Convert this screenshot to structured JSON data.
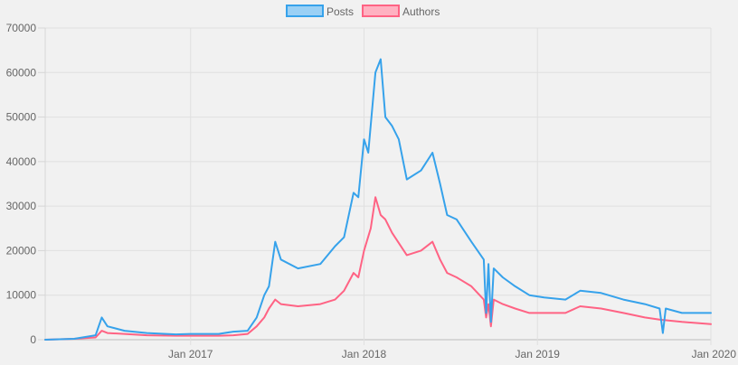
{
  "chart_data": {
    "type": "line",
    "title": "",
    "xlabel": "",
    "ylabel": "",
    "x_axis": {
      "min": "2016-03-01",
      "max": "2020-01-01",
      "ticks": [
        {
          "date": "2017-01-01",
          "label": "Jan 2017"
        },
        {
          "date": "2018-01-01",
          "label": "Jan 2018"
        },
        {
          "date": "2019-01-01",
          "label": "Jan 2019"
        },
        {
          "date": "2020-01-01",
          "label": "Jan 2020"
        }
      ]
    },
    "y_axis": {
      "min": 0,
      "max": 70000,
      "ticks": [
        0,
        10000,
        20000,
        30000,
        40000,
        50000,
        60000,
        70000
      ]
    },
    "grid": true,
    "legend_position": "top",
    "series": [
      {
        "name": "Posts",
        "color": "#36a2eb",
        "fill": "#9ad0f5",
        "points": [
          [
            "2016-03-01",
            0
          ],
          [
            "2016-05-01",
            200
          ],
          [
            "2016-06-15",
            1000
          ],
          [
            "2016-06-28",
            5000
          ],
          [
            "2016-07-10",
            3000
          ],
          [
            "2016-08-15",
            2000
          ],
          [
            "2016-10-01",
            1500
          ],
          [
            "2016-12-01",
            1200
          ],
          [
            "2017-01-01",
            1300
          ],
          [
            "2017-03-01",
            1300
          ],
          [
            "2017-04-01",
            1800
          ],
          [
            "2017-05-01",
            2000
          ],
          [
            "2017-05-20",
            5000
          ],
          [
            "2017-06-05",
            10000
          ],
          [
            "2017-06-15",
            12000
          ],
          [
            "2017-06-28",
            22000
          ],
          [
            "2017-07-10",
            18000
          ],
          [
            "2017-08-15",
            16000
          ],
          [
            "2017-10-01",
            17000
          ],
          [
            "2017-11-01",
            21000
          ],
          [
            "2017-11-20",
            23000
          ],
          [
            "2017-12-10",
            33000
          ],
          [
            "2017-12-20",
            32000
          ],
          [
            "2018-01-01",
            45000
          ],
          [
            "2018-01-10",
            42000
          ],
          [
            "2018-01-25",
            60000
          ],
          [
            "2018-02-05",
            63000
          ],
          [
            "2018-02-15",
            50000
          ],
          [
            "2018-03-01",
            48000
          ],
          [
            "2018-03-15",
            45000
          ],
          [
            "2018-04-01",
            36000
          ],
          [
            "2018-05-01",
            38000
          ],
          [
            "2018-05-25",
            42000
          ],
          [
            "2018-06-10",
            35000
          ],
          [
            "2018-06-25",
            28000
          ],
          [
            "2018-07-15",
            27000
          ],
          [
            "2018-08-15",
            22000
          ],
          [
            "2018-09-10",
            18000
          ],
          [
            "2018-09-15",
            6000
          ],
          [
            "2018-09-20",
            17000
          ],
          [
            "2018-09-25",
            4000
          ],
          [
            "2018-10-01",
            16000
          ],
          [
            "2018-10-20",
            14000
          ],
          [
            "2018-11-15",
            12000
          ],
          [
            "2018-12-15",
            10000
          ],
          [
            "2019-01-15",
            9500
          ],
          [
            "2019-03-01",
            9000
          ],
          [
            "2019-04-01",
            11000
          ],
          [
            "2019-05-15",
            10500
          ],
          [
            "2019-07-01",
            9000
          ],
          [
            "2019-08-15",
            8000
          ],
          [
            "2019-09-15",
            7000
          ],
          [
            "2019-09-22",
            1500
          ],
          [
            "2019-09-28",
            7000
          ],
          [
            "2019-11-01",
            6000
          ],
          [
            "2020-01-01",
            6000
          ]
        ]
      },
      {
        "name": "Authors",
        "color": "#ff6384",
        "fill": "#ffb1c1",
        "points": [
          [
            "2016-03-01",
            0
          ],
          [
            "2016-05-01",
            200
          ],
          [
            "2016-06-15",
            500
          ],
          [
            "2016-06-28",
            2000
          ],
          [
            "2016-07-10",
            1500
          ],
          [
            "2016-08-15",
            1300
          ],
          [
            "2016-10-01",
            1000
          ],
          [
            "2016-12-01",
            900
          ],
          [
            "2017-01-01",
            900
          ],
          [
            "2017-03-01",
            900
          ],
          [
            "2017-04-01",
            1000
          ],
          [
            "2017-05-01",
            1300
          ],
          [
            "2017-05-20",
            3000
          ],
          [
            "2017-06-05",
            5000
          ],
          [
            "2017-06-15",
            7000
          ],
          [
            "2017-06-28",
            9000
          ],
          [
            "2017-07-10",
            8000
          ],
          [
            "2017-08-15",
            7500
          ],
          [
            "2017-10-01",
            8000
          ],
          [
            "2017-11-01",
            9000
          ],
          [
            "2017-11-20",
            11000
          ],
          [
            "2017-12-10",
            15000
          ],
          [
            "2017-12-20",
            14000
          ],
          [
            "2018-01-01",
            20000
          ],
          [
            "2018-01-15",
            25000
          ],
          [
            "2018-01-25",
            32000
          ],
          [
            "2018-02-05",
            28000
          ],
          [
            "2018-02-15",
            27000
          ],
          [
            "2018-03-01",
            24000
          ],
          [
            "2018-04-01",
            19000
          ],
          [
            "2018-05-01",
            20000
          ],
          [
            "2018-05-25",
            22000
          ],
          [
            "2018-06-10",
            18000
          ],
          [
            "2018-06-25",
            15000
          ],
          [
            "2018-07-15",
            14000
          ],
          [
            "2018-08-15",
            12000
          ],
          [
            "2018-09-10",
            9000
          ],
          [
            "2018-09-15",
            5000
          ],
          [
            "2018-09-20",
            8000
          ],
          [
            "2018-09-25",
            3000
          ],
          [
            "2018-10-01",
            9000
          ],
          [
            "2018-10-20",
            8000
          ],
          [
            "2018-11-15",
            7000
          ],
          [
            "2018-12-15",
            6000
          ],
          [
            "2019-01-15",
            6000
          ],
          [
            "2019-03-01",
            6000
          ],
          [
            "2019-04-01",
            7500
          ],
          [
            "2019-05-15",
            7000
          ],
          [
            "2019-07-01",
            6000
          ],
          [
            "2019-08-15",
            5000
          ],
          [
            "2019-09-15",
            4500
          ],
          [
            "2019-11-01",
            4000
          ],
          [
            "2020-01-01",
            3500
          ]
        ]
      }
    ]
  }
}
